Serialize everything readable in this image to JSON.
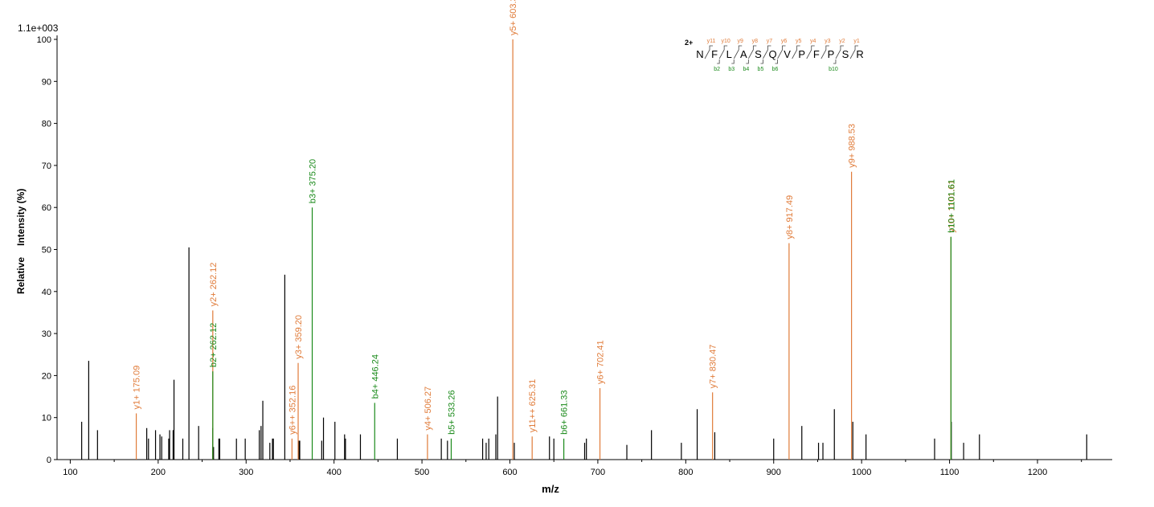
{
  "chart_data": {
    "type": "bar",
    "subtype": "mass-spectrum",
    "title": "",
    "scale_label": "1.1e+003",
    "xlabel": "m/z",
    "ylabel_part1": "Relative",
    "ylabel_part2": "Intensity (%)",
    "xlim": [
      85,
      1285
    ],
    "ylim": [
      0,
      100
    ],
    "xticks": [
      100,
      200,
      300,
      400,
      500,
      600,
      700,
      800,
      900,
      1000,
      1100,
      1200
    ],
    "yticks": [
      0,
      10,
      20,
      30,
      40,
      50,
      60,
      70,
      80,
      90,
      100
    ],
    "grid": false,
    "colors": {
      "unassigned": "#000000",
      "y_ion": "#e07b39",
      "b_ion": "#1a8a1a",
      "charge": "#1a2a8a"
    },
    "peaks_unassigned": [
      [
        113,
        9
      ],
      [
        121,
        23.5
      ],
      [
        131,
        7
      ],
      [
        187,
        7.5
      ],
      [
        189,
        5
      ],
      [
        197,
        7
      ],
      [
        202,
        6
      ],
      [
        204,
        5.5
      ],
      [
        212,
        5
      ],
      [
        213,
        7
      ],
      [
        217,
        7
      ],
      [
        218,
        19
      ],
      [
        228,
        5
      ],
      [
        235,
        50.5
      ],
      [
        246,
        8
      ],
      [
        262,
        7.5
      ],
      [
        263,
        3
      ],
      [
        269,
        5
      ],
      [
        270,
        5
      ],
      [
        289,
        5
      ],
      [
        299,
        5
      ],
      [
        315,
        7
      ],
      [
        317,
        8
      ],
      [
        319,
        14
      ],
      [
        327,
        4
      ],
      [
        330,
        5
      ],
      [
        331,
        5
      ],
      [
        344,
        44
      ],
      [
        360,
        4.5
      ],
      [
        361,
        4.5
      ],
      [
        386,
        4.5
      ],
      [
        388,
        10
      ],
      [
        401,
        9
      ],
      [
        412,
        6
      ],
      [
        413,
        5
      ],
      [
        430,
        6
      ],
      [
        472,
        5
      ],
      [
        522,
        5
      ],
      [
        529,
        4.5
      ],
      [
        569,
        5
      ],
      [
        573,
        4
      ],
      [
        576,
        5
      ],
      [
        584,
        6
      ],
      [
        586,
        15
      ],
      [
        605,
        4
      ],
      [
        645,
        5.5
      ],
      [
        650,
        5
      ],
      [
        685,
        4
      ],
      [
        687,
        5
      ],
      [
        733,
        3.5
      ],
      [
        761,
        7
      ],
      [
        795,
        4
      ],
      [
        813,
        12
      ],
      [
        833,
        6.5
      ],
      [
        900,
        5
      ],
      [
        932,
        8
      ],
      [
        951,
        4
      ],
      [
        956,
        4
      ],
      [
        969,
        12
      ],
      [
        990,
        9
      ],
      [
        1005,
        6
      ],
      [
        1083,
        5
      ],
      [
        1102,
        9
      ],
      [
        1116,
        4
      ],
      [
        1134,
        6
      ],
      [
        1256,
        6
      ]
    ],
    "peaks_y": [
      {
        "mz": 175.09,
        "int": 11,
        "label": "y1+ 175.09"
      },
      {
        "mz": 262.12,
        "int": 35.5,
        "label": "y2+ 262.12"
      },
      {
        "mz": 352.16,
        "int": 5,
        "label": "y6++ 352.16"
      },
      {
        "mz": 359.2,
        "int": 23,
        "label": "y3+ 359.20"
      },
      {
        "mz": 506.27,
        "int": 6,
        "label": "y4+ 506.27"
      },
      {
        "mz": 603.32,
        "int": 100,
        "label": "y5+ 603.32"
      },
      {
        "mz": 625.31,
        "int": 5.5,
        "label": "y11++ 625.31"
      },
      {
        "mz": 702.41,
        "int": 17,
        "label": "y6+ 702.41"
      },
      {
        "mz": 830.47,
        "int": 16,
        "label": "y7+ 830.47"
      },
      {
        "mz": 917.49,
        "int": 51.5,
        "label": "y8+ 917.49"
      },
      {
        "mz": 988.53,
        "int": 68.5,
        "label": "y9+ 988.53"
      },
      {
        "mz": 1101.61,
        "int": 53,
        "label": "y10+ 1101.61"
      }
    ],
    "peaks_b": [
      {
        "mz": 262.12,
        "int": 21,
        "label": "b2+ 262.12"
      },
      {
        "mz": 375.2,
        "int": 60,
        "label": "b3+ 375.20"
      },
      {
        "mz": 446.24,
        "int": 13.5,
        "label": "b4+ 446.24"
      },
      {
        "mz": 533.26,
        "int": 5,
        "label": "b5+ 533.26"
      },
      {
        "mz": 661.33,
        "int": 5,
        "label": "b6+ 661.33"
      },
      {
        "mz": 1101.61,
        "int": 53,
        "label": "b10+ 1101.61"
      }
    ],
    "sequence": {
      "charge": "2+",
      "residues": [
        "N",
        "F",
        "L",
        "A",
        "S",
        "Q",
        "V",
        "P",
        "F",
        "P",
        "S",
        "R"
      ],
      "y_ions": [
        "y11",
        "y10",
        "y9",
        "y8",
        "y7",
        "y6",
        "y5",
        "y4",
        "y3",
        "y2",
        "y1"
      ],
      "y_marked": [
        1,
        1,
        1,
        1,
        1,
        1,
        1,
        1,
        1,
        1,
        1
      ],
      "b_ions": [
        "b2",
        "b3",
        "b4",
        "b5",
        "b6",
        "",
        "",
        "",
        "b10",
        ""
      ],
      "b_after_residue": [
        2,
        3,
        4,
        5,
        6,
        10
      ]
    }
  }
}
